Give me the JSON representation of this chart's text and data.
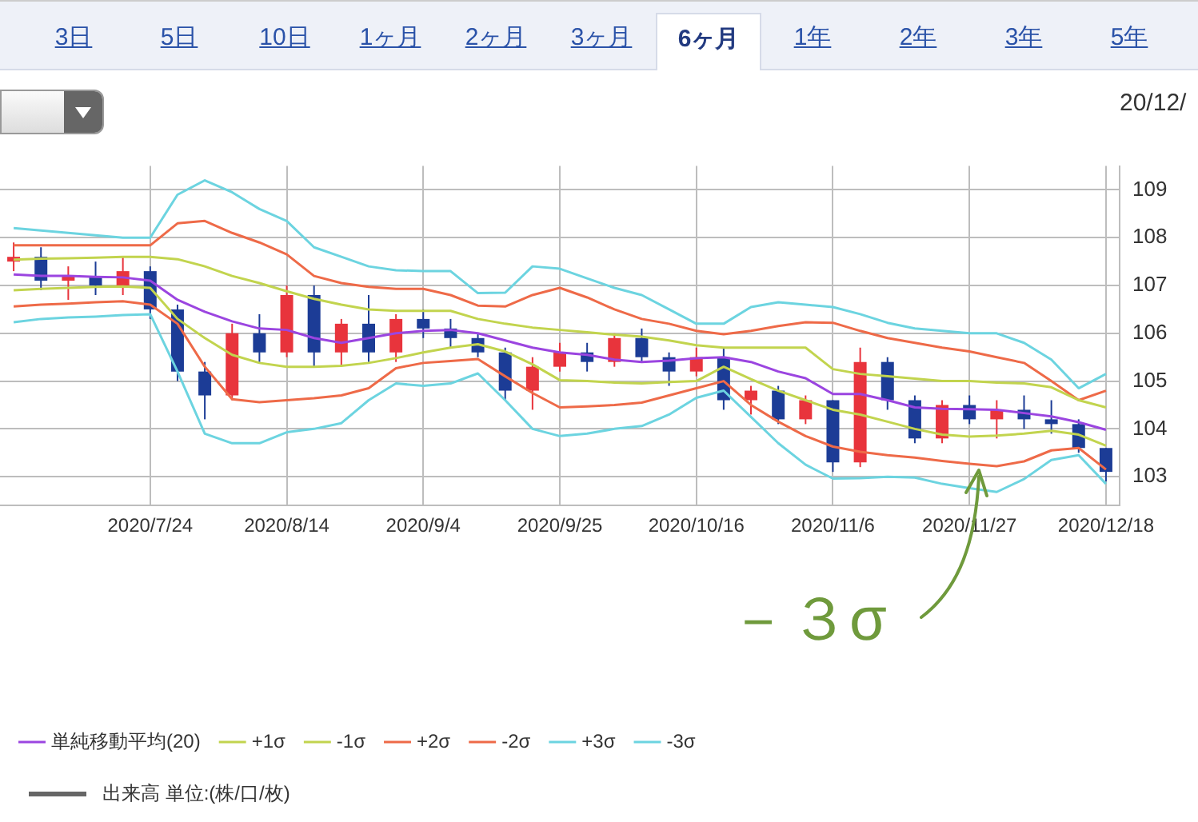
{
  "chart_data": {
    "type": "candlestick",
    "categories": [
      null,
      null,
      null,
      null,
      null,
      "2020/7/24",
      null,
      null,
      null,
      null,
      "2020/8/14",
      null,
      null,
      null,
      null,
      "2020/9/4",
      null,
      null,
      null,
      null,
      "2020/9/25",
      null,
      null,
      null,
      null,
      "2020/10/16",
      null,
      null,
      null,
      null,
      "2020/11/6",
      null,
      null,
      null,
      null,
      "2020/11/27",
      null,
      null,
      null,
      null,
      "2020/12/18"
    ],
    "ohlc": [
      [
        107.5,
        107.9,
        107.3,
        107.6
      ],
      [
        107.6,
        107.8,
        106.9,
        107.1
      ],
      [
        107.1,
        107.4,
        106.7,
        107.2
      ],
      [
        107.2,
        107.5,
        106.8,
        107.0
      ],
      [
        107.0,
        107.6,
        106.8,
        107.3
      ],
      [
        107.3,
        107.4,
        106.3,
        106.5
      ],
      [
        106.5,
        106.6,
        105.0,
        105.2
      ],
      [
        105.2,
        105.4,
        104.2,
        104.7
      ],
      [
        104.7,
        106.2,
        104.6,
        106.0
      ],
      [
        106.0,
        106.4,
        105.4,
        105.6
      ],
      [
        105.6,
        107.0,
        105.5,
        106.8
      ],
      [
        106.8,
        107.0,
        105.3,
        105.6
      ],
      [
        105.6,
        106.3,
        105.3,
        106.2
      ],
      [
        106.2,
        106.8,
        105.4,
        105.6
      ],
      [
        105.6,
        106.4,
        105.4,
        106.3
      ],
      [
        106.3,
        106.5,
        105.9,
        106.1
      ],
      [
        106.1,
        106.3,
        105.7,
        105.9
      ],
      [
        105.9,
        106.0,
        105.5,
        105.6
      ],
      [
        105.6,
        105.7,
        104.6,
        104.8
      ],
      [
        104.8,
        105.5,
        104.4,
        105.3
      ],
      [
        105.3,
        105.8,
        105.2,
        105.6
      ],
      [
        105.6,
        105.8,
        105.2,
        105.4
      ],
      [
        105.4,
        106.0,
        105.3,
        105.9
      ],
      [
        105.9,
        106.1,
        105.4,
        105.5
      ],
      [
        105.5,
        105.6,
        104.9,
        105.2
      ],
      [
        105.2,
        105.7,
        105.1,
        105.5
      ],
      [
        105.5,
        105.7,
        104.4,
        104.6
      ],
      [
        104.6,
        104.9,
        104.3,
        104.8
      ],
      [
        104.8,
        104.9,
        104.1,
        104.2
      ],
      [
        104.2,
        104.7,
        104.1,
        104.6
      ],
      [
        104.6,
        104.6,
        103.1,
        103.3
      ],
      [
        103.3,
        105.7,
        103.2,
        105.4
      ],
      [
        105.4,
        105.5,
        104.4,
        104.6
      ],
      [
        104.6,
        104.7,
        103.7,
        103.8
      ],
      [
        103.8,
        104.6,
        103.7,
        104.5
      ],
      [
        104.5,
        104.7,
        104.1,
        104.2
      ],
      [
        104.2,
        104.6,
        103.8,
        104.4
      ],
      [
        104.4,
        104.7,
        104.0,
        104.2
      ],
      [
        104.2,
        104.6,
        103.9,
        104.1
      ],
      [
        104.1,
        104.2,
        103.5,
        103.6
      ],
      [
        103.6,
        103.6,
        102.9,
        103.1
      ]
    ],
    "colors": [
      "#e8343c",
      "#1c3c96",
      "#e8343c",
      "#1c3c96",
      "#e8343c",
      "#1c3c96",
      "#1c3c96",
      "#1c3c96",
      "#e8343c",
      "#1c3c96",
      "#e8343c",
      "#1c3c96",
      "#e8343c",
      "#1c3c96",
      "#e8343c",
      "#1c3c96",
      "#1c3c96",
      "#1c3c96",
      "#1c3c96",
      "#e8343c",
      "#e8343c",
      "#1c3c96",
      "#e8343c",
      "#1c3c96",
      "#1c3c96",
      "#e8343c",
      "#1c3c96",
      "#e8343c",
      "#1c3c96",
      "#e8343c",
      "#1c3c96",
      "#e8343c",
      "#1c3c96",
      "#1c3c96",
      "#e8343c",
      "#1c3c96",
      "#e8343c",
      "#1c3c96",
      "#1c3c96",
      "#1c3c96",
      "#1c3c96"
    ],
    "series": [
      {
        "name": "単純移動平均(20)",
        "type": "line",
        "color": "#9b45e0",
        "values": [
          107.23,
          107.2,
          107.2,
          107.18,
          107.17,
          107.1,
          106.7,
          106.45,
          106.25,
          106.1,
          106.07,
          105.9,
          105.8,
          105.9,
          106.0,
          106.05,
          106.07,
          106.0,
          105.85,
          105.7,
          105.6,
          105.55,
          105.45,
          105.4,
          105.43,
          105.48,
          105.5,
          105.4,
          105.2,
          105.06,
          104.73,
          104.73,
          104.6,
          104.45,
          104.42,
          104.41,
          104.4,
          104.33,
          104.26,
          104.14,
          103.98
        ]
      },
      {
        "name": "+1σ",
        "type": "line",
        "color": "#c2d44e",
        "values": [
          107.54,
          107.56,
          107.57,
          107.58,
          107.6,
          107.6,
          107.55,
          107.4,
          107.2,
          107.05,
          106.88,
          106.72,
          106.6,
          106.5,
          106.47,
          106.47,
          106.47,
          106.3,
          106.2,
          106.12,
          106.07,
          106.02,
          105.97,
          105.93,
          105.85,
          105.75,
          105.7,
          105.7,
          105.7,
          105.7,
          105.25,
          105.15,
          105.1,
          105.05,
          105.0,
          105.0,
          104.97,
          104.95,
          104.87,
          104.6,
          104.45
        ]
      },
      {
        "name": "-1σ",
        "type": "line",
        "color": "#c2d44e",
        "values": [
          106.9,
          106.93,
          106.95,
          106.97,
          106.98,
          106.95,
          106.3,
          105.9,
          105.55,
          105.38,
          105.3,
          105.3,
          105.32,
          105.38,
          105.48,
          105.6,
          105.7,
          105.77,
          105.62,
          105.35,
          105.02,
          105.0,
          104.97,
          104.95,
          104.98,
          105.0,
          105.3,
          105.04,
          104.8,
          104.6,
          104.4,
          104.3,
          104.15,
          104.0,
          103.88,
          103.84,
          103.86,
          103.9,
          103.96,
          103.88,
          103.65
        ]
      },
      {
        "name": "+2σ",
        "type": "line",
        "color": "#ee6a48",
        "values": [
          107.84,
          107.84,
          107.84,
          107.84,
          107.84,
          107.84,
          108.3,
          108.35,
          108.1,
          107.9,
          107.65,
          107.2,
          107.05,
          106.97,
          106.93,
          106.93,
          106.8,
          106.58,
          106.56,
          106.8,
          106.95,
          106.75,
          106.5,
          106.3,
          106.2,
          106.05,
          105.98,
          106.05,
          106.15,
          106.23,
          106.22,
          106.05,
          105.9,
          105.8,
          105.7,
          105.62,
          105.5,
          105.38,
          105.0,
          104.6,
          104.8
        ]
      },
      {
        "name": "-2σ",
        "type": "line",
        "color": "#ee6a48",
        "values": [
          106.56,
          106.6,
          106.62,
          106.65,
          106.67,
          106.6,
          106.2,
          105.3,
          104.62,
          104.56,
          104.6,
          104.64,
          104.7,
          104.85,
          105.27,
          105.38,
          105.42,
          105.46,
          105.1,
          104.75,
          104.45,
          104.47,
          104.5,
          104.55,
          104.7,
          104.85,
          105.0,
          104.5,
          104.15,
          103.85,
          103.63,
          103.52,
          103.45,
          103.4,
          103.33,
          103.27,
          103.22,
          103.32,
          103.55,
          103.6,
          103.15
        ]
      },
      {
        "name": "+3σ",
        "type": "line",
        "color": "#6cd4e0",
        "values": [
          108.2,
          108.15,
          108.1,
          108.05,
          108.0,
          108.0,
          108.9,
          109.2,
          108.95,
          108.6,
          108.35,
          107.8,
          107.6,
          107.4,
          107.32,
          107.3,
          107.3,
          106.84,
          106.85,
          107.4,
          107.35,
          107.15,
          106.95,
          106.8,
          106.5,
          106.2,
          106.2,
          106.55,
          106.65,
          106.6,
          106.55,
          106.4,
          106.22,
          106.1,
          106.05,
          106.0,
          106.0,
          105.8,
          105.45,
          104.85,
          105.15
        ]
      },
      {
        "name": "-3σ",
        "type": "line",
        "color": "#6cd4e0",
        "values": [
          106.23,
          106.3,
          106.33,
          106.35,
          106.38,
          106.4,
          105.2,
          103.9,
          103.7,
          103.7,
          103.93,
          104.0,
          104.12,
          104.6,
          104.95,
          104.9,
          104.95,
          105.16,
          104.6,
          104.0,
          103.85,
          103.9,
          104.0,
          104.06,
          104.3,
          104.65,
          104.8,
          104.25,
          103.7,
          103.25,
          102.96,
          102.97,
          103.0,
          102.98,
          102.85,
          102.76,
          102.68,
          102.95,
          103.35,
          103.45,
          102.85
        ]
      }
    ],
    "ylim": [
      102.4,
      109.5
    ],
    "yticks": [
      103,
      104,
      105,
      106,
      107,
      108,
      109
    ],
    "grid": true,
    "legend": "bottom",
    "annotations": [
      "3日",
      "5日",
      "10日",
      "1ヶ月",
      "2ヶ月",
      "3ヶ月",
      "6ヶ月",
      "1年",
      "2年",
      "3年",
      "5年",
      "20/12/",
      "出来高 単位:(株/口/枚)",
      "－３σ"
    ]
  }
}
